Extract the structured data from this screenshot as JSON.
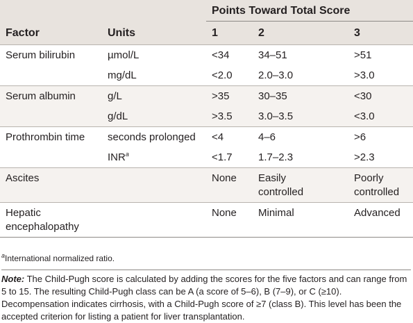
{
  "header": {
    "group_label": "Points Toward Total Score",
    "columns": [
      "Factor",
      "Units",
      "1",
      "2",
      "3"
    ]
  },
  "table": {
    "groups": [
      {
        "factor": "Serum bilirubin",
        "rows": [
          {
            "units": "µmol/L",
            "values": [
              "<34",
              "34–51",
              ">51"
            ]
          },
          {
            "units": "mg/dL",
            "values": [
              "<2.0",
              "2.0–3.0",
              ">3.0"
            ]
          }
        ]
      },
      {
        "factor": "Serum albumin",
        "rows": [
          {
            "units": "g/L",
            "values": [
              ">35",
              "30–35",
              "<30"
            ]
          },
          {
            "units": "g/dL",
            "values": [
              ">3.5",
              "3.0–3.5",
              "<3.0"
            ]
          }
        ]
      },
      {
        "factor": "Prothrombin time",
        "rows": [
          {
            "units": "seconds prolonged",
            "values": [
              "<4",
              "4–6",
              ">6"
            ]
          },
          {
            "units": "INR",
            "units_sup": "a",
            "values": [
              "<1.7",
              "1.7–2.3",
              ">2.3"
            ]
          }
        ]
      },
      {
        "factor": "Ascites",
        "rows": [
          {
            "values": [
              "None",
              "Easily controlled",
              "Poorly controlled"
            ]
          }
        ]
      },
      {
        "factor": "Hepatic encephalopathy",
        "rows": [
          {
            "values": [
              "None",
              "Minimal",
              "Advanced"
            ]
          }
        ]
      }
    ]
  },
  "footnote": {
    "mark": "a",
    "text": "International normalized ratio."
  },
  "note": {
    "label": "Note:",
    "text": "The Child-Pugh score is calculated by adding the scores for the five factors and can range from 5 to 15. The resulting Child-Pugh class can be A (a score of 5–6), B (7–9), or C (≥10). Decompensation indicates cirrhosis, with a Child-Pugh score of ≥7 (class B). This level has been the accepted criterion for listing a patient for liver transplantation."
  }
}
